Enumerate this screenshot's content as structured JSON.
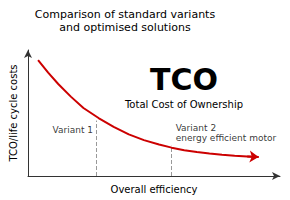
{
  "chart_data": {
    "type": "line",
    "title": "Comparison of standard variants\nand optimised solutions",
    "xlabel": "Overall efficiency",
    "ylabel": "TCO/life cycle costs",
    "x": [
      0.04,
      0.08,
      0.12,
      0.17,
      0.22,
      0.28,
      0.34,
      0.4,
      0.46,
      0.52,
      0.57,
      0.62,
      0.67,
      0.72,
      0.77,
      0.82,
      0.87,
      0.915
    ],
    "values": [
      0.92,
      0.82,
      0.73,
      0.63,
      0.54,
      0.46,
      0.39,
      0.33,
      0.285,
      0.25,
      0.225,
      0.205,
      0.19,
      0.178,
      0.168,
      0.16,
      0.155,
      0.15
    ],
    "color": "#cc0000",
    "xlim": [
      0,
      1.0
    ],
    "ylim": [
      0,
      1.0
    ],
    "xticks": [],
    "yticks": [],
    "tick_labels": false,
    "grid": false,
    "annotations": [
      "TCO",
      "Total Cost of Ownership"
    ],
    "variants": [
      {
        "x": 0.27,
        "y": 0.44,
        "label": "Variant 1"
      },
      {
        "x": 0.57,
        "y": 0.24,
        "label": "Variant 2",
        "sublabel": "energy efficient motor"
      }
    ]
  }
}
